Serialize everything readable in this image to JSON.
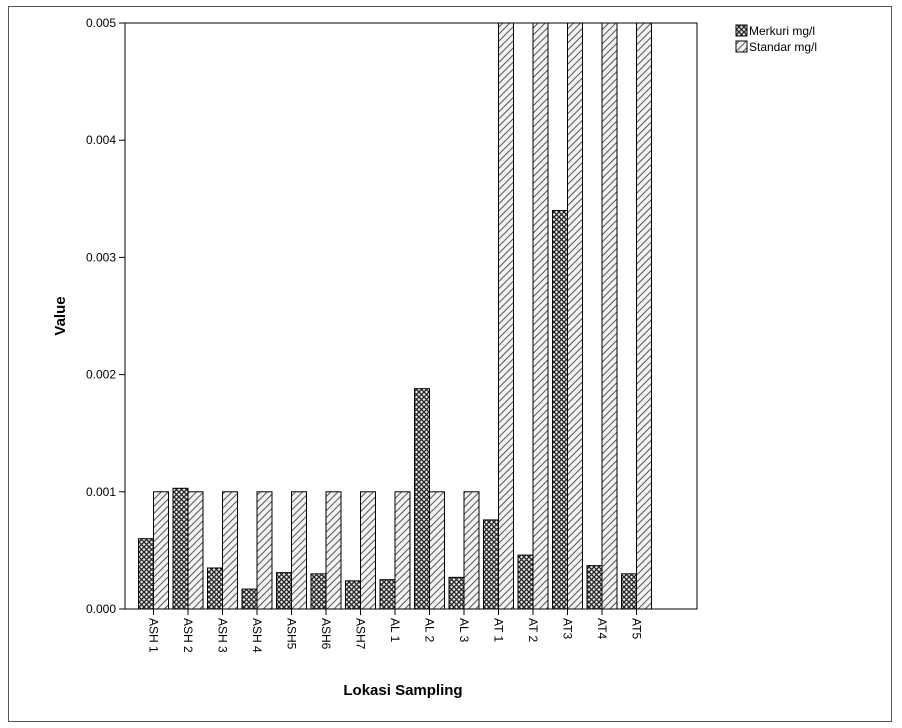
{
  "chart_data": {
    "type": "bar",
    "xlabel": "Lokasi Sampling",
    "ylabel": "Value",
    "ylim": [
      0,
      0.005
    ],
    "yticks": [
      "0.000",
      "0.001",
      "0.002",
      "0.003",
      "0.004",
      "0.005"
    ],
    "grid": false,
    "legend_position": "top-right",
    "categories": [
      "ASH 1",
      "ASH 2",
      "ASH 3",
      "ASH 4",
      "ASH5",
      "ASH6",
      "ASH7",
      "AL 1",
      "AL 2",
      "AL 3",
      "AT 1",
      "AT 2",
      "AT3",
      "AT4",
      "AT5"
    ],
    "series": [
      {
        "name": "Merkuri mg/l",
        "pattern": "crosshatch",
        "color": "#555555",
        "values": [
          0.0006,
          0.00103,
          0.00035,
          0.00017,
          0.00031,
          0.0003,
          0.00024,
          0.00025,
          0.00188,
          0.00027,
          0.00076,
          0.00046,
          0.0034,
          0.00037,
          0.0003
        ]
      },
      {
        "name": "Standar mg/l",
        "pattern": "diagonal",
        "color": "#cfcfcf",
        "values": [
          0.001,
          0.001,
          0.001,
          0.001,
          0.001,
          0.001,
          0.001,
          0.001,
          0.001,
          0.001,
          0.005,
          0.005,
          0.005,
          0.005,
          0.005
        ]
      }
    ]
  }
}
